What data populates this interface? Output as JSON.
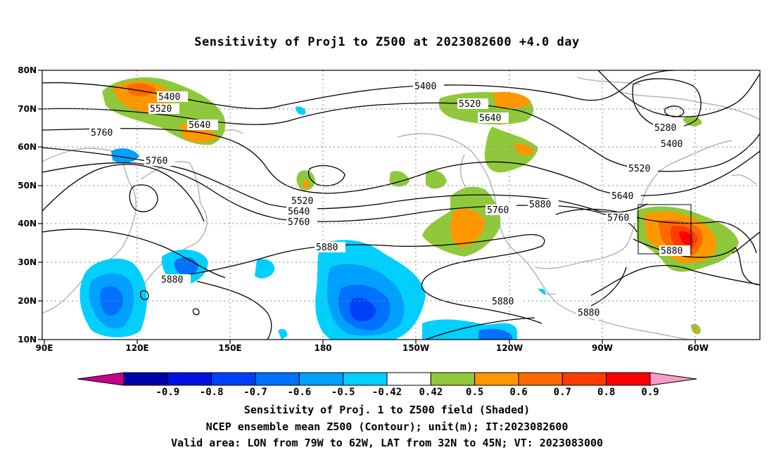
{
  "title": "Sensitivity of Proj1 to Z500 at 2023082600 +4.0 day",
  "captions": [
    "Sensitivity of Proj. 1 to Z500 field (Shaded)",
    "NCEP ensemble mean Z500 (Contour); unit(m); IT:2023082600",
    "Valid area: LON from 79W to 62W, LAT from 32N to 45N; VT: 2023083000"
  ],
  "lat_ticks": [
    "10N",
    "20N",
    "30N",
    "40N",
    "50N",
    "60N",
    "70N",
    "80N"
  ],
  "lon_ticks": [
    "90E",
    "120E",
    "150E",
    "180",
    "150W",
    "120W",
    "90W",
    "60W"
  ],
  "colorbar": {
    "labels": [
      "-0.9",
      "-0.8",
      "-0.7",
      "-0.6",
      "-0.5",
      "-0.42",
      "0.42",
      "0.5",
      "0.6",
      "0.7",
      "0.8",
      "0.9"
    ],
    "colors": [
      "#c8008c",
      "#0000a8",
      "#0010e0",
      "#0040f8",
      "#0070ff",
      "#00a0ff",
      "#00d0ff",
      "#ffffff",
      "#90c83c",
      "#ff9800",
      "#ff6a00",
      "#ff3c00",
      "#ff0000",
      "#ff9cc8"
    ]
  },
  "contour_labels": [
    "5400",
    "5520",
    "5640",
    "5760",
    "5880",
    "5280"
  ],
  "valid_area": {
    "lon_from": "79W",
    "lon_to": "62W",
    "lat_from": "32N",
    "lat_to": "45N"
  }
}
